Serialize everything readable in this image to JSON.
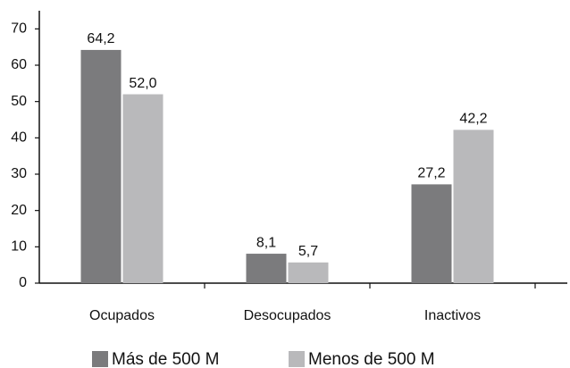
{
  "chart_data": {
    "type": "bar",
    "categories": [
      "Ocupados",
      "Desocupados",
      "Inactivos"
    ],
    "series": [
      {
        "name": "Más de 500 M",
        "color": "#7b7b7d",
        "values": [
          64.2,
          8.1,
          27.2
        ],
        "value_labels": [
          "64,2",
          "8,1",
          "27,2"
        ]
      },
      {
        "name": "Menos de 500 M",
        "color": "#b9b9bb",
        "values": [
          52.0,
          5.7,
          42.2
        ],
        "value_labels": [
          "52,0",
          "5,7",
          "42,2"
        ]
      }
    ],
    "ylim": [
      0,
      75
    ],
    "yticks": [
      0,
      10,
      20,
      30,
      40,
      50,
      60,
      70
    ],
    "grid": false
  }
}
